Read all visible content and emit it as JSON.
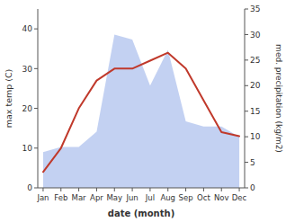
{
  "chart_data": {
    "type": "line",
    "categories": [
      "Jan",
      "Feb",
      "Mar",
      "Apr",
      "May",
      "Jun",
      "Jul",
      "Aug",
      "Sep",
      "Oct",
      "Nov",
      "Dec"
    ],
    "xlabel": "date (month)",
    "ylabel": "max temp (C)",
    "y2label": "med. precipitation (kg/m2)",
    "ylim": [
      0,
      45
    ],
    "yticks": [
      0,
      10,
      20,
      30,
      40
    ],
    "y2lim": [
      0,
      35
    ],
    "y2ticks": [
      0,
      5,
      10,
      15,
      20,
      25,
      30,
      35
    ],
    "series": [
      {
        "type": "area",
        "axis": "y2",
        "color": "#b8c9f0",
        "values": [
          7,
          8,
          8,
          11,
          30,
          29,
          20,
          27,
          13,
          12,
          12,
          10
        ]
      },
      {
        "type": "line",
        "color": "#c0392b",
        "values": [
          4,
          10,
          20,
          27,
          30,
          30,
          32,
          34,
          30,
          22,
          14,
          13
        ]
      }
    ]
  }
}
